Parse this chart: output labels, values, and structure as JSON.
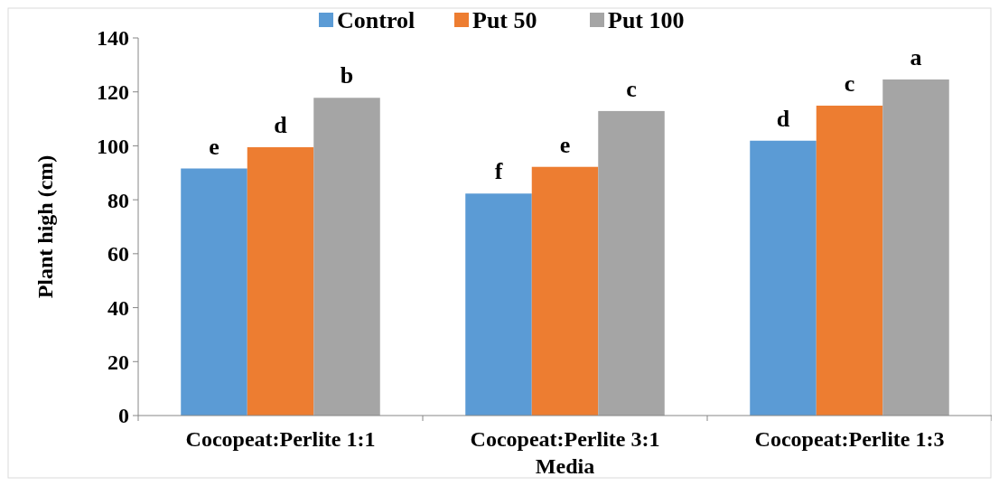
{
  "chart_data": {
    "type": "bar",
    "xlabel": "Media",
    "ylabel": "Plant high (cm)",
    "categories": [
      "Cocopeat:Perlite 1:1",
      "Cocopeat:Perlite 3:1",
      "Cocopeat:Perlite 1:3"
    ],
    "series": [
      {
        "name": "Control",
        "color": "#5b9bd5",
        "values": [
          91.6,
          82.3,
          101.9
        ]
      },
      {
        "name": "Put 50",
        "color": "#ed7d31",
        "values": [
          99.5,
          92.2,
          114.9
        ]
      },
      {
        "name": "Put 100",
        "color": "#a5a5a5",
        "values": [
          117.8,
          112.9,
          124.6
        ]
      }
    ],
    "ylim": [
      0,
      140
    ],
    "yticks": [
      0,
      20,
      40,
      60,
      80,
      100,
      120,
      140
    ],
    "grid": false,
    "legend": "top",
    "annotations": [
      "e",
      "d",
      "b",
      "f",
      "e",
      "c",
      "d",
      "c",
      "a"
    ]
  }
}
